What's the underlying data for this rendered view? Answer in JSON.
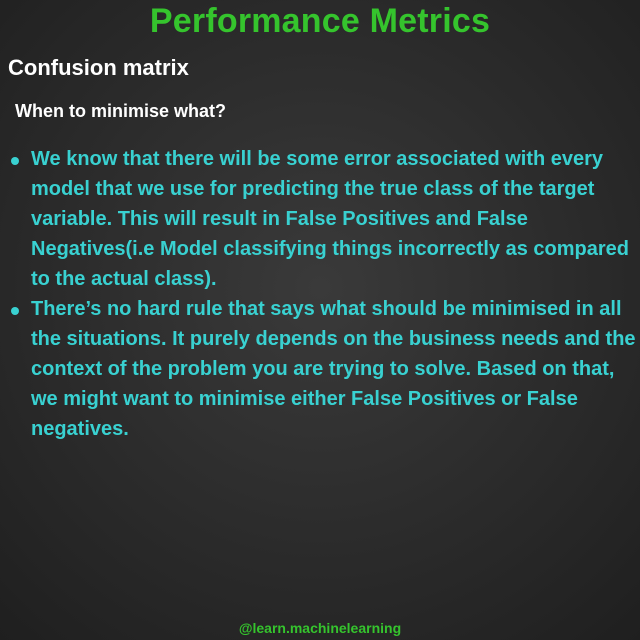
{
  "title": "Performance Metrics",
  "subtitle": "Confusion matrix",
  "question": "When to minimise what?",
  "bullets": [
    "We know that there will be some error associated with every model that we use for predicting the true class of the target variable. This will result in False Positives and False Negatives(i.e Model classifying things incorrectly as compared to the actual class).",
    "There’s no hard rule that says what should be minimised in all the situations. It purely depends on the business needs and the context of the problem you are trying to solve. Based on that, we might want to minimise either False Positives or False negatives."
  ],
  "footer": "@learn.machinelearning",
  "colors": {
    "title": "#35c42d",
    "bullet_text": "#39d1d1",
    "heading_text": "#ffffff",
    "background": "#2b2b2b"
  }
}
